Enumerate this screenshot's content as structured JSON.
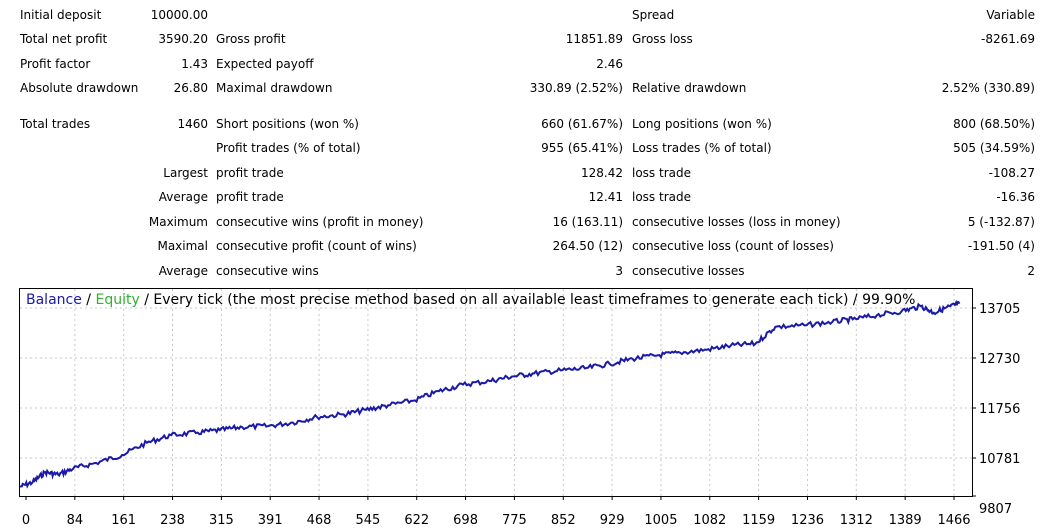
{
  "report": {
    "initial_deposit_label": "Initial deposit",
    "initial_deposit": "10000.00",
    "spread_label": "Spread",
    "spread": "Variable",
    "total_net_profit_label": "Total net profit",
    "total_net_profit": "3590.20",
    "gross_profit_label": "Gross profit",
    "gross_profit": "11851.89",
    "gross_loss_label": "Gross loss",
    "gross_loss": "-8261.69",
    "profit_factor_label": "Profit factor",
    "profit_factor": "1.43",
    "expected_payoff_label": "Expected payoff",
    "expected_payoff": "2.46",
    "absolute_drawdown_label": "Absolute drawdown",
    "absolute_drawdown": "26.80",
    "maximal_drawdown_label": "Maximal drawdown",
    "maximal_drawdown": "330.89 (2.52%)",
    "relative_drawdown_label": "Relative drawdown",
    "relative_drawdown": "2.52% (330.89)",
    "total_trades_label": "Total trades",
    "total_trades": "1460",
    "short_positions_label": "Short positions (won %)",
    "short_positions": "660 (61.67%)",
    "long_positions_label": "Long positions (won %)",
    "long_positions": "800 (68.50%)",
    "profit_trades_label": "Profit trades (% of total)",
    "profit_trades": "955 (65.41%)",
    "loss_trades_label": "Loss trades (% of total)",
    "loss_trades": "505 (34.59%)",
    "largest_label": "Largest",
    "largest_profit_label": "profit trade",
    "largest_profit": "128.42",
    "largest_loss_label": "loss trade",
    "largest_loss": "-108.27",
    "average_label": "Average",
    "average_profit_label": "profit trade",
    "average_profit": "12.41",
    "average_loss_label": "loss trade",
    "average_loss": "-16.36",
    "maximum_label": "Maximum",
    "max_cons_wins_label": "consecutive wins (profit in money)",
    "max_cons_wins": "16 (163.11)",
    "max_cons_losses_label": "consecutive losses (loss in money)",
    "max_cons_losses": "5 (-132.87)",
    "maximal_label": "Maximal",
    "maximal_cons_profit_label": "consecutive profit (count of wins)",
    "maximal_cons_profit": "264.50 (12)",
    "maximal_cons_loss_label": "consecutive loss (count of losses)",
    "maximal_cons_loss": "-191.50 (4)",
    "average2_label": "Average",
    "avg_cons_wins_label": "consecutive wins",
    "avg_cons_wins": "3",
    "avg_cons_losses_label": "consecutive losses",
    "avg_cons_losses": "2"
  },
  "colors": {
    "balance": "#1a1aa6",
    "equity": "#33b033",
    "grid": "#c8c8c8",
    "axis": "#000000"
  },
  "chart_data": {
    "type": "line",
    "title_parts": {
      "balance": "Balance",
      "sep1": " / ",
      "equity": "Equity",
      "rest": " / Every tick (the most precise method based on all available least timeframes to generate each tick) / 99.90%"
    },
    "x_ticks": [
      "0",
      "84",
      "161",
      "238",
      "315",
      "391",
      "468",
      "545",
      "622",
      "698",
      "775",
      "852",
      "929",
      "1005",
      "1082",
      "1159",
      "1236",
      "1312",
      "1389",
      "1466"
    ],
    "y_ticks": [
      "13705",
      "12730",
      "11756",
      "10781",
      "9807"
    ],
    "xlim": [
      0,
      1500
    ],
    "ylim": [
      9807,
      13900
    ],
    "series": [
      {
        "name": "Balance",
        "x": [
          0,
          20,
          40,
          60,
          84,
          120,
          161,
          200,
          238,
          280,
          315,
          350,
          391,
          430,
          468,
          510,
          545,
          580,
          622,
          660,
          698,
          740,
          775,
          810,
          852,
          890,
          929,
          965,
          1005,
          1040,
          1082,
          1120,
          1159,
          1190,
          1236,
          1280,
          1312,
          1350,
          1389,
          1420,
          1440,
          1466,
          1480
        ],
        "y": [
          9990,
          10080,
          10280,
          10230,
          10350,
          10460,
          10620,
          10860,
          11010,
          11060,
          11110,
          11170,
          11190,
          11260,
          11370,
          11420,
          11510,
          11600,
          11700,
          11880,
          12010,
          12080,
          12170,
          12230,
          12290,
          12330,
          12420,
          12520,
          12590,
          12640,
          12700,
          12780,
          12820,
          13150,
          13180,
          13250,
          13300,
          13380,
          13460,
          13560,
          13430,
          13560,
          13610
        ]
      }
    ]
  }
}
